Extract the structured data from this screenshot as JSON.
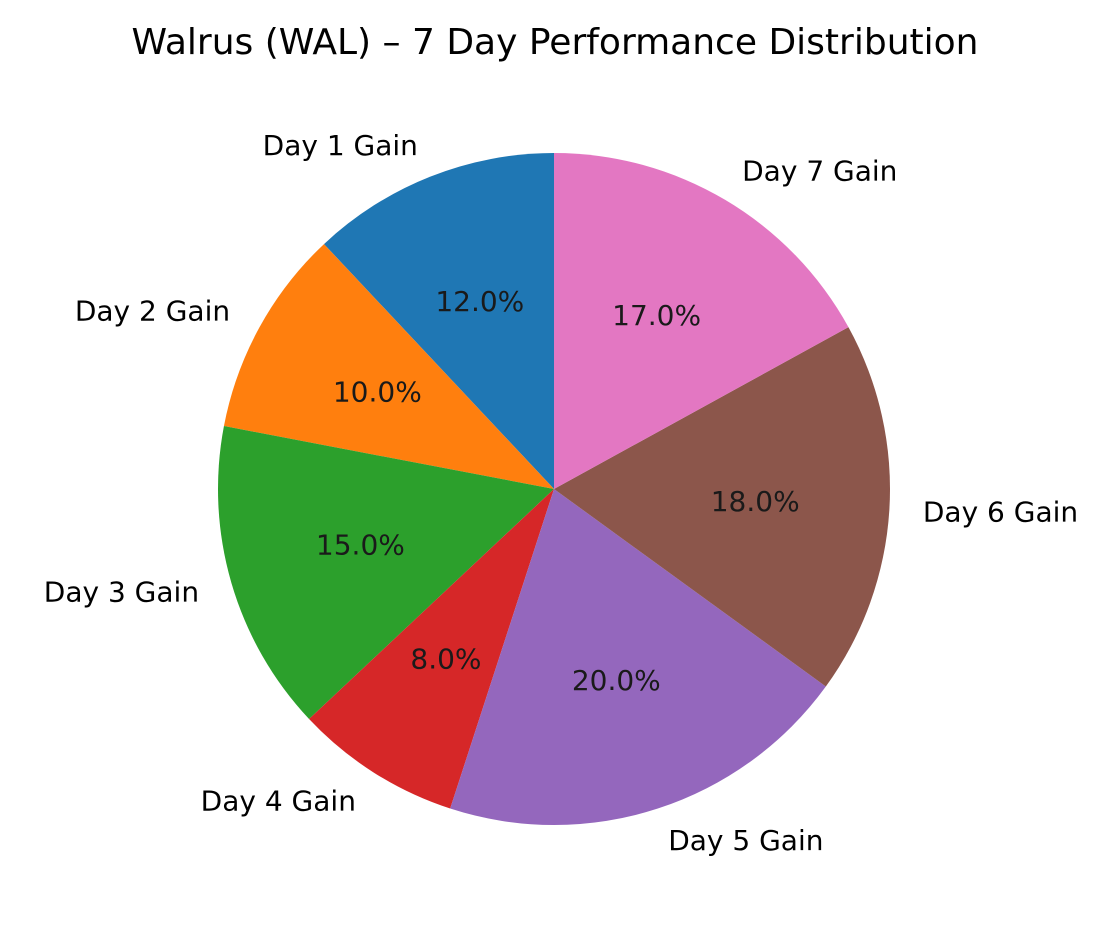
{
  "chart_data": {
    "type": "pie",
    "title": "Walrus (WAL) – 7 Day Performance Distribution",
    "start_angle_deg": 90,
    "direction": "counterclockwise",
    "pct_format": "%.1f%%",
    "slices": [
      {
        "label": "Day 1 Gain",
        "value": 12.0,
        "pct_text": "12.0%",
        "color": "#1f77b4"
      },
      {
        "label": "Day 2 Gain",
        "value": 10.0,
        "pct_text": "10.0%",
        "color": "#ff7f0e"
      },
      {
        "label": "Day 3 Gain",
        "value": 15.0,
        "pct_text": "15.0%",
        "color": "#2ca02c"
      },
      {
        "label": "Day 4 Gain",
        "value": 8.0,
        "pct_text": "8.0%",
        "color": "#d62728"
      },
      {
        "label": "Day 5 Gain",
        "value": 20.0,
        "pct_text": "20.0%",
        "color": "#9467bd"
      },
      {
        "label": "Day 6 Gain",
        "value": 18.0,
        "pct_text": "18.0%",
        "color": "#8c564b"
      },
      {
        "label": "Day 7 Gain",
        "value": 17.0,
        "pct_text": "17.0%",
        "color": "#e377c2"
      }
    ]
  }
}
